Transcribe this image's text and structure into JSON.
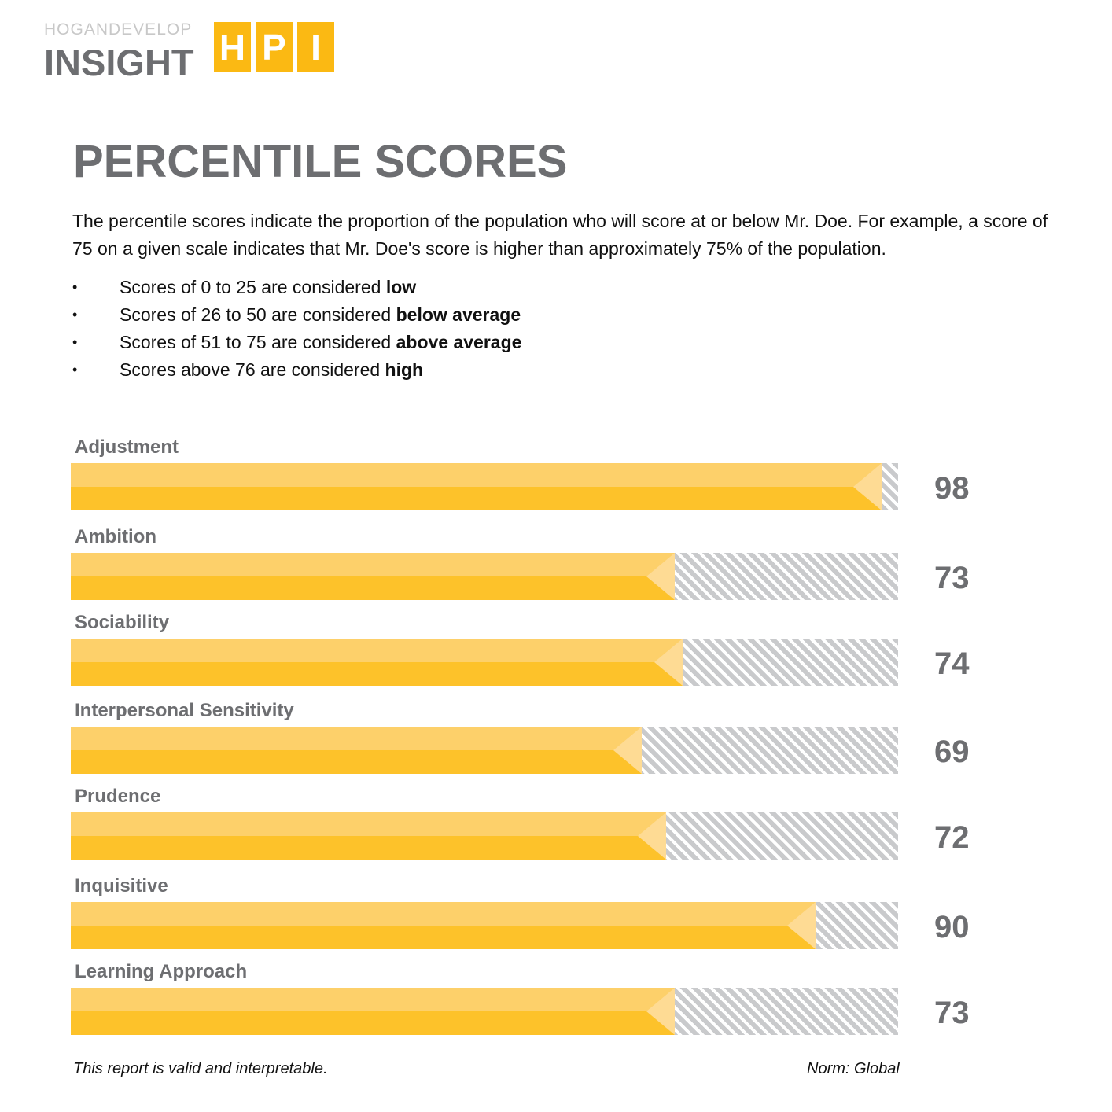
{
  "logo": {
    "top": "HOGANDEVELOP",
    "main": "INSIGHT",
    "letters": [
      "H",
      "P",
      "I"
    ],
    "color": "#fbb913"
  },
  "title": "PERCENTILE SCORES",
  "intro": "The percentile scores indicate the proportion of the population who will score at or below Mr. Doe. For example, a score of 75 on a given scale indicates that Mr. Doe's score is higher than approximately 75% of the population.",
  "bullets": [
    {
      "text": "Scores of 0 to 25 are considered ",
      "bold": "low"
    },
    {
      "text": "Scores of 26 to 50 are considered ",
      "bold": "below average"
    },
    {
      "text": "Scores of 51 to 75 are considered ",
      "bold": "above average"
    },
    {
      "text": "Scores above 76 are considered ",
      "bold": "high"
    }
  ],
  "chart_data": {
    "type": "bar",
    "orientation": "horizontal",
    "xlim": [
      0,
      100
    ],
    "categories": [
      "Adjustment",
      "Ambition",
      "Sociability",
      "Interpersonal Sensitivity",
      "Prudence",
      "Inquisitive",
      "Learning Approach"
    ],
    "values": [
      98,
      73,
      74,
      69,
      72,
      90,
      73
    ],
    "colors": {
      "fill": "#fdc22a",
      "remaining": "#c9cacc"
    }
  },
  "footer": {
    "left": "This report is valid and interpretable.",
    "right": "Norm: Global"
  }
}
